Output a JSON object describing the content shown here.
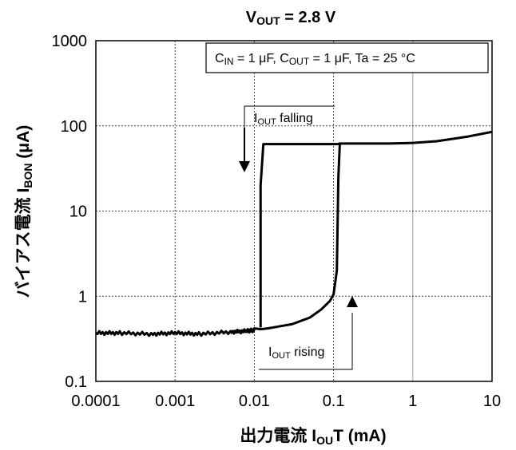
{
  "chart_data": {
    "type": "line",
    "title": {
      "main": "V",
      "sub": "OUT",
      "rest": " = 2.8 V"
    },
    "xlabel": {
      "pre": "出力電流  I",
      "sub": "OU",
      "post": "T (mA)"
    },
    "ylabel": {
      "pre": "バイアス電流  I",
      "sub": "BON",
      "post": " (μA)"
    },
    "x_scale": "log",
    "y_scale": "log",
    "xlim": [
      0.0001,
      10
    ],
    "ylim": [
      0.1,
      1000
    ],
    "x_ticks": [
      "0.0001",
      "0.001",
      "0.01",
      "0.1",
      "1",
      "10"
    ],
    "y_ticks": [
      "0.1",
      "1",
      "10",
      "100",
      "1000"
    ],
    "grid": true,
    "conditions": {
      "parts": [
        {
          "t": "C"
        },
        {
          "t": "IN",
          "sub": true
        },
        {
          "t": " = 1 μF, C"
        },
        {
          "t": "OUT",
          "sub": true
        },
        {
          "t": " = 1 μF, Ta = 25 °C"
        }
      ]
    },
    "annotations": {
      "falling": {
        "pre": "I",
        "sub": "OUT",
        "post": " falling"
      },
      "rising": {
        "pre": "I",
        "sub": "OUT",
        "post": " rising"
      }
    },
    "series": [
      {
        "values_x": [
          0.0001,
          0.0002,
          0.0005,
          0.001,
          0.002,
          0.005,
          0.008,
          0.01,
          0.012,
          0.015,
          0.02,
          0.03,
          0.05,
          0.07,
          0.09,
          0.1,
          0.11,
          0.115,
          0.12,
          0.5,
          1,
          2,
          5,
          10
        ],
        "values_y": [
          0.37,
          0.37,
          0.36,
          0.37,
          0.36,
          0.38,
          0.39,
          0.4,
          0.41,
          0.42,
          0.44,
          0.47,
          0.56,
          0.7,
          0.88,
          1.05,
          2.0,
          25,
          62,
          62,
          63,
          66,
          75,
          85
        ]
      },
      {
        "values_x": [
          0.12,
          0.11,
          0.05,
          0.02,
          0.013,
          0.012,
          0.012
        ],
        "values_y": [
          62,
          61,
          61,
          61,
          61,
          20,
          0.43
        ]
      }
    ]
  }
}
